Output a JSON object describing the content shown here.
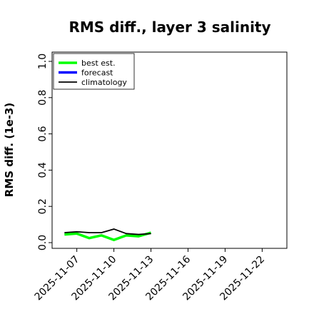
{
  "chart_data": {
    "type": "line",
    "title": "RMS diff., layer 3 salinity",
    "ylabel": "RMS diff. (1e-3)",
    "xlabel": "",
    "ylim": [
      0.0,
      1.0
    ],
    "xlim": [
      "2025-11-05",
      "2025-11-24"
    ],
    "yticks": [
      "0.0",
      "0.2",
      "0.4",
      "0.6",
      "0.8",
      "1.0"
    ],
    "xticks": [
      "2025-11-07",
      "2025-11-10",
      "2025-11-13",
      "2025-11-16",
      "2025-11-19",
      "2025-11-22"
    ],
    "highlighted_xtick": "2025-11-13",
    "highlight_color": "#228B22",
    "grid": false,
    "legend_position": "upper left",
    "series": [
      {
        "name": "best est.",
        "color": "#00ff00",
        "x": [
          "2025-11-06",
          "2025-11-07",
          "2025-11-08",
          "2025-11-09",
          "2025-11-10",
          "2025-11-11",
          "2025-11-12",
          "2025-11-13"
        ],
        "y": [
          0.045,
          0.05,
          0.025,
          0.04,
          0.015,
          0.04,
          0.035,
          0.055
        ]
      },
      {
        "name": "forecast",
        "color": "#0000ff",
        "x": [],
        "y": []
      },
      {
        "name": "climatology",
        "color": "#000000",
        "x": [
          "2025-11-06",
          "2025-11-07",
          "2025-11-08",
          "2025-11-09",
          "2025-11-10",
          "2025-11-11",
          "2025-11-12",
          "2025-11-13"
        ],
        "y": [
          0.055,
          0.06,
          0.055,
          0.055,
          0.075,
          0.05,
          0.045,
          0.05
        ]
      }
    ]
  }
}
